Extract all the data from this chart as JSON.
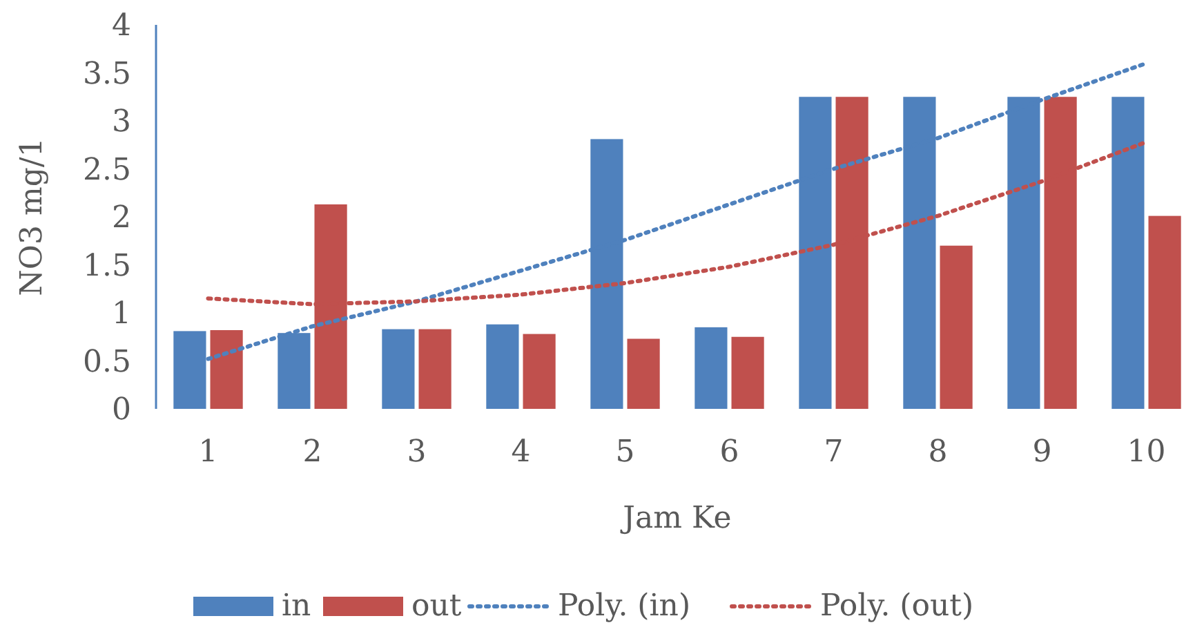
{
  "chart_data": {
    "type": "bar",
    "xlabel": "Jam Ke",
    "ylabel": "NO3 mg/1",
    "categories": [
      "1",
      "2",
      "3",
      "4",
      "5",
      "6",
      "7",
      "8",
      "9",
      "10"
    ],
    "ylim": [
      0,
      4
    ],
    "yticks": [
      0,
      {
        "value": 0.5,
        "label": "0.5"
      },
      1,
      {
        "value": 1.5,
        "label": "1.5"
      },
      2,
      {
        "value": 2.5,
        "label": "2.5"
      },
      3,
      {
        "value": 3.5,
        "label": "3.5"
      },
      4
    ],
    "grid": false,
    "legend": "bottom",
    "series": [
      {
        "name": "in",
        "color": "#4f81bd",
        "values": [
          0.81,
          0.79,
          0.83,
          0.88,
          2.81,
          0.85,
          3.25,
          3.25,
          3.25,
          3.25
        ]
      },
      {
        "name": "out",
        "color": "#c0504d",
        "values": [
          0.82,
          2.13,
          0.83,
          0.78,
          0.73,
          0.75,
          3.25,
          1.7,
          3.25,
          2.01
        ]
      },
      {
        "name": "Poly. (in)",
        "type": "line",
        "line_style": "dotted",
        "color": "#4f81bd",
        "values": [
          0.52,
          0.86,
          1.12,
          1.44,
          1.76,
          2.13,
          2.5,
          2.82,
          3.22,
          3.6
        ]
      },
      {
        "name": "Poly. (out)",
        "type": "line",
        "line_style": "dotted",
        "color": "#c0504d",
        "values": [
          1.15,
          1.09,
          1.12,
          1.19,
          1.31,
          1.48,
          1.71,
          2.01,
          2.37,
          2.78
        ]
      }
    ]
  }
}
